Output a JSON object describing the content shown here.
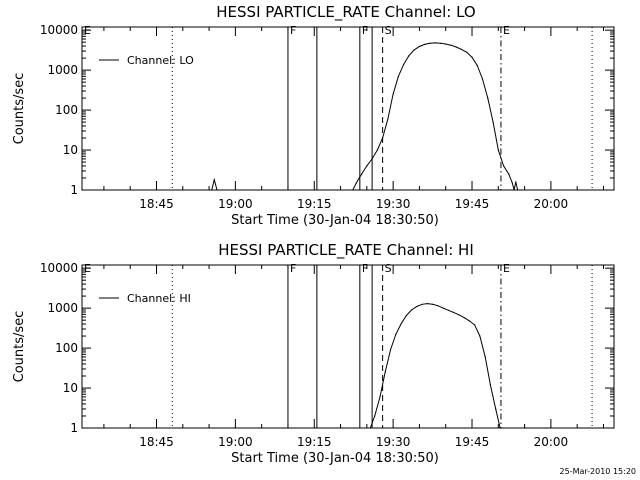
{
  "footer": {
    "timestamp": "25-Mar-2010 15:20"
  },
  "chart_data": [
    {
      "type": "line",
      "title": "HESSI PARTICLE_RATE Channel: LO",
      "xlabel": "Start Time (30-Jan-04 18:30:50)",
      "ylabel": "Counts/sec",
      "x_ticks": [
        "18:45",
        "19:00",
        "19:15",
        "19:30",
        "19:45",
        "20:00"
      ],
      "y_ticks": [
        "1",
        "10",
        "100",
        "1000",
        "10000"
      ],
      "xlim": [
        "18:30:50",
        "20:12:00"
      ],
      "ylim": [
        1,
        12000
      ],
      "y_scale": "log",
      "legend": {
        "label": "Channel: LO",
        "position": "top-left"
      },
      "markers": [
        {
          "label": "E",
          "time": "18:30:50",
          "style": "none"
        },
        {
          "label": "F",
          "time": "19:10:00",
          "style": "solid"
        },
        {
          "label": "",
          "time": "19:15:30",
          "style": "solid"
        },
        {
          "label": "F",
          "time": "19:23:40",
          "style": "solid"
        },
        {
          "label": "",
          "time": "19:26:00",
          "style": "solid"
        },
        {
          "label": "S",
          "time": "19:28:00",
          "style": "dashed"
        },
        {
          "label": "E",
          "time": "19:50:30",
          "style": "dashdot"
        },
        {
          "label": "",
          "time": "18:48:00",
          "style": "dotted"
        },
        {
          "label": "",
          "time": "20:07:50",
          "style": "dotted"
        }
      ],
      "series": [
        {
          "points": [
            [
              "18:30:50",
              1
            ],
            [
              "18:55:30",
              1
            ],
            [
              "18:56:00",
              1.8
            ],
            [
              "18:56:30",
              1
            ],
            [
              "19:22:20",
              1
            ],
            [
              "19:23:00",
              1.5
            ],
            [
              "19:24:00",
              2.5
            ],
            [
              "19:25:00",
              4
            ],
            [
              "19:26:00",
              6
            ],
            [
              "19:27:00",
              10
            ],
            [
              "19:28:00",
              20
            ],
            [
              "19:29:00",
              60
            ],
            [
              "19:30:00",
              250
            ],
            [
              "19:31:00",
              700
            ],
            [
              "19:32:00",
              1400
            ],
            [
              "19:33:00",
              2300
            ],
            [
              "19:34:00",
              3200
            ],
            [
              "19:35:00",
              3900
            ],
            [
              "19:36:00",
              4400
            ],
            [
              "19:37:00",
              4700
            ],
            [
              "19:38:00",
              4800
            ],
            [
              "19:39:00",
              4700
            ],
            [
              "19:40:00",
              4500
            ],
            [
              "19:41:00",
              4200
            ],
            [
              "19:42:00",
              3800
            ],
            [
              "19:43:00",
              3300
            ],
            [
              "19:44:00",
              2800
            ],
            [
              "19:45:00",
              2100
            ],
            [
              "19:46:00",
              1300
            ],
            [
              "19:47:00",
              600
            ],
            [
              "19:48:00",
              200
            ],
            [
              "19:49:00",
              50
            ],
            [
              "19:50:00",
              10
            ],
            [
              "19:51:00",
              4
            ],
            [
              "19:52:00",
              2.5
            ],
            [
              "19:52:40",
              1.5
            ],
            [
              "19:53:00",
              1
            ],
            [
              "19:53:20",
              1.6
            ],
            [
              "19:53:40",
              1
            ],
            [
              "20:12:00",
              1
            ]
          ]
        }
      ]
    },
    {
      "type": "line",
      "title": "HESSI PARTICLE_RATE Channel: HI",
      "xlabel": "Start Time (30-Jan-04 18:30:50)",
      "ylabel": "Counts/sec",
      "x_ticks": [
        "18:45",
        "19:00",
        "19:15",
        "19:30",
        "19:45",
        "20:00"
      ],
      "y_ticks": [
        "1",
        "10",
        "100",
        "1000",
        "10000"
      ],
      "xlim": [
        "18:30:50",
        "20:12:00"
      ],
      "ylim": [
        1,
        12000
      ],
      "y_scale": "log",
      "legend": {
        "label": "Channel: HI",
        "position": "top-left"
      },
      "markers": [
        {
          "label": "E",
          "time": "18:30:50",
          "style": "none"
        },
        {
          "label": "F",
          "time": "19:10:00",
          "style": "solid"
        },
        {
          "label": "",
          "time": "19:15:30",
          "style": "solid"
        },
        {
          "label": "F",
          "time": "19:23:40",
          "style": "solid"
        },
        {
          "label": "",
          "time": "19:26:00",
          "style": "solid"
        },
        {
          "label": "S",
          "time": "19:28:00",
          "style": "dashed"
        },
        {
          "label": "E",
          "time": "19:50:30",
          "style": "dashdot"
        },
        {
          "label": "",
          "time": "18:48:00",
          "style": "dotted"
        },
        {
          "label": "",
          "time": "20:07:50",
          "style": "dotted"
        }
      ],
      "series": [
        {
          "points": [
            [
              "18:30:50",
              1
            ],
            [
              "19:25:40",
              1
            ],
            [
              "19:26:30",
              2
            ],
            [
              "19:27:30",
              6
            ],
            [
              "19:28:30",
              25
            ],
            [
              "19:29:30",
              90
            ],
            [
              "19:30:30",
              220
            ],
            [
              "19:31:30",
              400
            ],
            [
              "19:32:30",
              650
            ],
            [
              "19:33:30",
              900
            ],
            [
              "19:34:30",
              1100
            ],
            [
              "19:35:30",
              1250
            ],
            [
              "19:36:30",
              1300
            ],
            [
              "19:37:30",
              1250
            ],
            [
              "19:38:30",
              1150
            ],
            [
              "19:39:30",
              1000
            ],
            [
              "19:40:30",
              880
            ],
            [
              "19:41:30",
              780
            ],
            [
              "19:42:30",
              680
            ],
            [
              "19:43:30",
              580
            ],
            [
              "19:44:30",
              480
            ],
            [
              "19:45:30",
              380
            ],
            [
              "19:46:30",
              200
            ],
            [
              "19:47:30",
              60
            ],
            [
              "19:48:30",
              12
            ],
            [
              "19:49:30",
              3
            ],
            [
              "19:50:20",
              1
            ],
            [
              "20:12:00",
              1
            ]
          ]
        }
      ]
    }
  ]
}
